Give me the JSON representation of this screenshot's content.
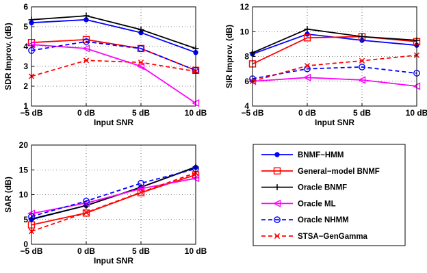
{
  "chart_data": [
    {
      "type": "line",
      "xlabel": "Input SNR",
      "ylabel": "SDR Improv. (dB)",
      "categories": [
        "−5 dB",
        "0 dB",
        "5 dB",
        "10 dB"
      ],
      "ylim": [
        1,
        6
      ],
      "yticks": [
        "1",
        "2",
        "3",
        "4",
        "5",
        "6"
      ],
      "grid": true,
      "series": [
        {
          "name": "BNMF−HMM",
          "values": [
            5.2,
            5.35,
            4.7,
            3.7
          ]
        },
        {
          "name": "General−model BNMF",
          "values": [
            4.2,
            4.35,
            3.9,
            2.8
          ]
        },
        {
          "name": "Oracle BNMF",
          "values": [
            5.35,
            5.55,
            4.85,
            3.9
          ]
        },
        {
          "name": "Oracle ML",
          "values": [
            4.1,
            3.9,
            3.0,
            1.15
          ]
        },
        {
          "name": "Oracle NHMM",
          "values": [
            3.8,
            4.25,
            3.9,
            2.8
          ]
        },
        {
          "name": "STSA−GenGamma",
          "values": [
            2.5,
            3.3,
            3.2,
            2.75
          ]
        }
      ]
    },
    {
      "type": "line",
      "xlabel": "Input SNR",
      "ylabel": "SIR Improv. (dB)",
      "categories": [
        "−5 dB",
        "0 dB",
        "5 dB",
        "10 dB"
      ],
      "ylim": [
        4,
        12
      ],
      "yticks": [
        "4",
        "6",
        "8",
        "10",
        "12"
      ],
      "grid": true,
      "series": [
        {
          "name": "BNMF−HMM",
          "values": [
            8.2,
            9.8,
            9.3,
            8.9
          ]
        },
        {
          "name": "General−model BNMF",
          "values": [
            7.4,
            9.5,
            9.6,
            9.2
          ]
        },
        {
          "name": "Oracle BNMF",
          "values": [
            8.3,
            10.2,
            9.6,
            9.3
          ]
        },
        {
          "name": "Oracle ML",
          "values": [
            6.0,
            6.3,
            6.1,
            5.6
          ]
        },
        {
          "name": "Oracle NHMM",
          "values": [
            6.2,
            7.0,
            7.15,
            6.65
          ]
        },
        {
          "name": "STSA−GenGamma",
          "values": [
            6.0,
            7.25,
            7.65,
            8.1
          ]
        }
      ]
    },
    {
      "type": "line",
      "xlabel": "Input SNR",
      "ylabel": "SAR (dB)",
      "categories": [
        "−5 dB",
        "0 dB",
        "5 dB",
        "10 dB"
      ],
      "ylim": [
        0,
        20
      ],
      "yticks": [
        "0",
        "5",
        "10",
        "15",
        "20"
      ],
      "grid": true,
      "series": [
        {
          "name": "BNMF−HMM",
          "values": [
            5.0,
            7.8,
            11.5,
            15.5
          ]
        },
        {
          "name": "General−model BNMF",
          "values": [
            3.9,
            6.3,
            10.4,
            14.0
          ]
        },
        {
          "name": "Oracle BNMF",
          "values": [
            5.1,
            7.8,
            11.5,
            15.6
          ]
        },
        {
          "name": "Oracle ML",
          "values": [
            6.2,
            8.3,
            11.2,
            13.3
          ]
        },
        {
          "name": "Oracle NHMM",
          "values": [
            5.6,
            8.7,
            12.3,
            15.2
          ]
        },
        {
          "name": "STSA−GenGamma",
          "values": [
            2.6,
            6.4,
            10.5,
            14.4
          ]
        }
      ]
    }
  ],
  "legend": {
    "items": [
      {
        "label": "BNMF−HMM",
        "color": "#0000ff",
        "marker": "dot",
        "dash": "solid"
      },
      {
        "label": "General−model BNMF",
        "color": "#ff0000",
        "marker": "square",
        "dash": "solid"
      },
      {
        "label": "Oracle BNMF",
        "color": "#000000",
        "marker": "plus",
        "dash": "solid"
      },
      {
        "label": "Oracle ML",
        "color": "#ff00ff",
        "marker": "triangle-left",
        "dash": "solid"
      },
      {
        "label": "Oracle NHMM",
        "color": "#0000ff",
        "marker": "circle",
        "dash": "dashed"
      },
      {
        "label": "STSA−GenGamma",
        "color": "#ff0000",
        "marker": "x",
        "dash": "dashed"
      }
    ]
  }
}
